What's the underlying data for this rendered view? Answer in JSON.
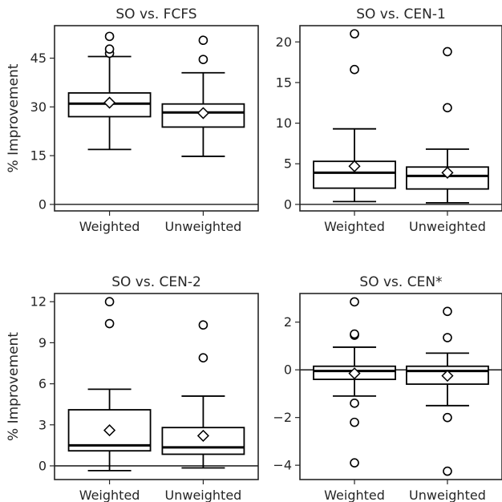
{
  "chart_data": [
    {
      "type": "box",
      "title": "SO vs. FCFS",
      "ylabel": "% Improvement",
      "categories": [
        "Weighted",
        "Unweighted"
      ],
      "ylim": [
        -2,
        55
      ],
      "yticks": [
        0,
        15,
        30,
        45
      ],
      "ytick_labels": [
        "0",
        "15",
        "30",
        "45"
      ],
      "reference_line": 0,
      "boxes": [
        {
          "q1": 27,
          "median": 31,
          "q3": 34.3,
          "whisker_low": 16.9,
          "whisker_high": 45.5,
          "mean": 31.3,
          "outliers": [
            46.5,
            47.8,
            51.7
          ]
        },
        {
          "q1": 23.8,
          "median": 28.3,
          "q3": 30.9,
          "whisker_low": 14.8,
          "whisker_high": 40.5,
          "mean": 28.1,
          "outliers": [
            44.6,
            50.5
          ]
        }
      ]
    },
    {
      "type": "box",
      "title": "SO vs. CEN-1",
      "ylabel": "",
      "categories": [
        "Weighted",
        "Unweighted"
      ],
      "ylim": [
        -0.8,
        22
      ],
      "yticks": [
        0,
        5,
        10,
        15,
        20
      ],
      "ytick_labels": [
        "0",
        "5",
        "10",
        "15",
        "20"
      ],
      "reference_line": 0,
      "boxes": [
        {
          "q1": 2,
          "median": 3.9,
          "q3": 5.3,
          "whisker_low": 0.35,
          "whisker_high": 9.3,
          "mean": 4.7,
          "outliers": [
            16.6,
            21
          ]
        },
        {
          "q1": 1.9,
          "median": 3.5,
          "q3": 4.6,
          "whisker_low": 0.2,
          "whisker_high": 6.8,
          "mean": 3.9,
          "outliers": [
            11.9,
            18.8
          ]
        }
      ]
    },
    {
      "type": "box",
      "title": "SO vs. CEN-2",
      "ylabel": "% Improvement",
      "categories": [
        "Weighted",
        "Unweighted"
      ],
      "ylim": [
        -1,
        12.6
      ],
      "yticks": [
        0,
        3,
        6,
        9,
        12
      ],
      "ytick_labels": [
        "0",
        "3",
        "6",
        "9",
        "12"
      ],
      "reference_line": 0,
      "boxes": [
        {
          "q1": 1.1,
          "median": 1.5,
          "q3": 4.1,
          "whisker_low": -0.35,
          "whisker_high": 5.6,
          "mean": 2.6,
          "outliers": [
            10.4,
            12
          ]
        },
        {
          "q1": 0.85,
          "median": 1.35,
          "q3": 2.8,
          "whisker_low": -0.15,
          "whisker_high": 5.1,
          "mean": 2.2,
          "outliers": [
            7.9,
            10.3
          ]
        }
      ]
    },
    {
      "type": "box",
      "title": "SO vs. CEN*",
      "ylabel": "",
      "categories": [
        "Weighted",
        "Unweighted"
      ],
      "ylim": [
        -4.6,
        3.2
      ],
      "yticks": [
        -4,
        -2,
        0,
        2
      ],
      "ytick_labels": [
        "−4",
        "−2",
        "0",
        "2"
      ],
      "reference_line": 0,
      "boxes": [
        {
          "q1": -0.4,
          "median": -0.05,
          "q3": 0.15,
          "whisker_low": -1.1,
          "whisker_high": 0.95,
          "mean": -0.15,
          "outliers": [
            -3.9,
            -2.2,
            -1.4,
            1.45,
            1.5,
            2.85
          ]
        },
        {
          "q1": -0.6,
          "median": -0.05,
          "q3": 0.15,
          "whisker_low": -1.5,
          "whisker_high": 0.7,
          "mean": -0.25,
          "outliers": [
            -4.25,
            -2,
            1.35,
            2.45
          ]
        }
      ]
    }
  ]
}
